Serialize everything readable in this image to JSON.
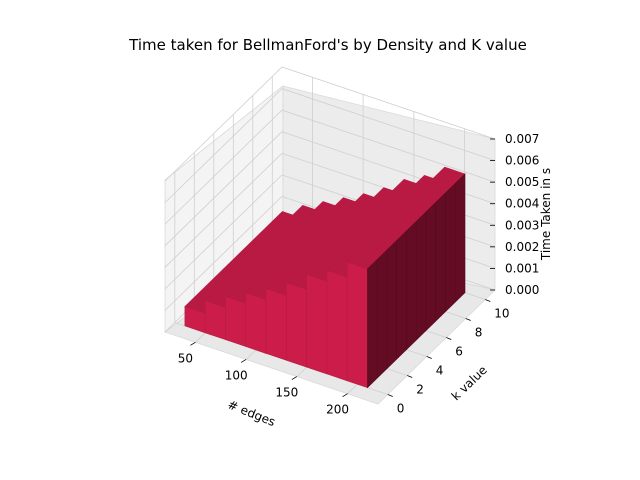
{
  "chart_data": {
    "type": "bar3d",
    "title": "Time taken for BellmanFord's by Density and K value",
    "xlabel": "# edges",
    "ylabel": "k value",
    "zlabel": "Time Taken in s",
    "x_ticks": [
      "50",
      "100",
      "150",
      "200"
    ],
    "y_ticks": [
      "0",
      "2",
      "4",
      "6",
      "8",
      "10"
    ],
    "z_ticks": [
      "0.000",
      "0.001",
      "0.002",
      "0.003",
      "0.004",
      "0.005",
      "0.006",
      "0.007"
    ],
    "xlim": [
      20,
      230
    ],
    "ylim": [
      -1,
      11
    ],
    "zlim": [
      0,
      0.007
    ],
    "x": [
      40,
      60,
      80,
      100,
      120,
      140,
      160,
      180,
      200
    ],
    "series": [
      {
        "values": [
          0.0009,
          0.0015,
          0.002,
          0.0025,
          0.003,
          0.0036,
          0.0043,
          0.0048,
          0.0055
        ]
      }
    ],
    "k_values": [
      0,
      10
    ],
    "color": "#cc1c4a",
    "grid": true
  }
}
